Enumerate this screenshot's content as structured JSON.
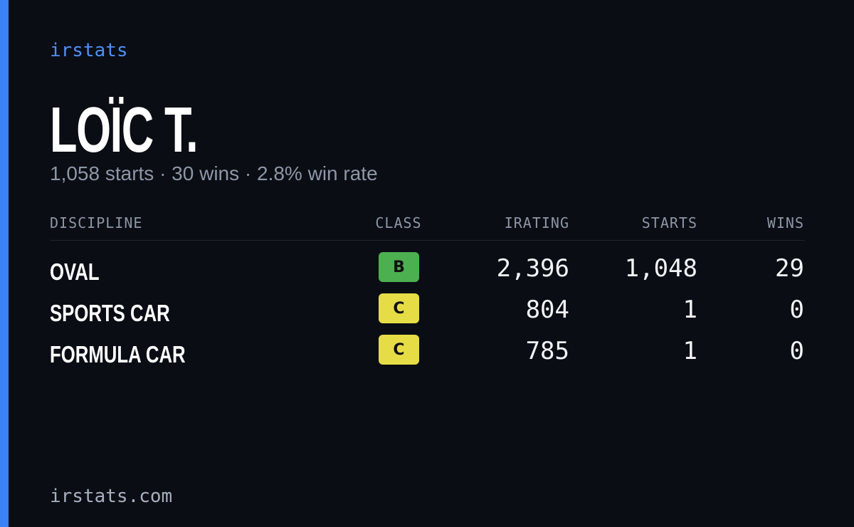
{
  "brand": "irstats",
  "name": "LOÏC T.",
  "summary": "1,058 starts · 30 wins · 2.8% win rate",
  "table": {
    "headers": [
      "DISCIPLINE",
      "CLASS",
      "IRATING",
      "STARTS",
      "WINS"
    ],
    "rows": [
      {
        "discipline": "OVAL",
        "class": "B",
        "class_color": "#4caf50",
        "irating": "2,396",
        "starts": "1,048",
        "wins": "29"
      },
      {
        "discipline": "SPORTS CAR",
        "class": "C",
        "class_color": "#e6dd46",
        "irating": "804",
        "starts": "1",
        "wins": "0"
      },
      {
        "discipline": "FORMULA CAR",
        "class": "C",
        "class_color": "#e6dd46",
        "irating": "785",
        "starts": "1",
        "wins": "0"
      }
    ]
  },
  "footer": "irstats.com"
}
